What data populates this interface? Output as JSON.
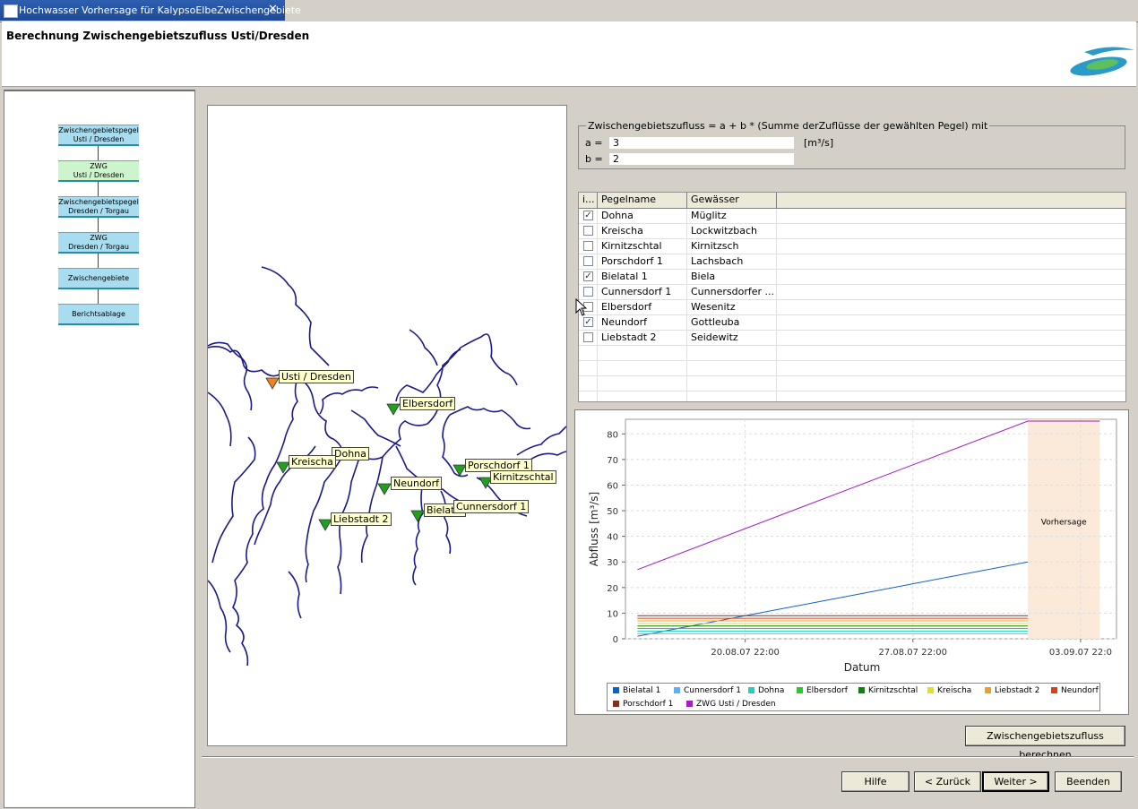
{
  "window": {
    "tab_title": "Hochwasser Vorhersage für KalypsoElbeZwischengebiete",
    "close_glyph": "✕"
  },
  "header": {
    "title": "Berechnung Zwischengebietszufluss Usti/Dresden"
  },
  "workflow": [
    {
      "line1": "Zwischengebietspegel",
      "line2": "Usti / Dresden",
      "state": "normal"
    },
    {
      "line1": "ZWG",
      "line2": "Usti / Dresden",
      "state": "active"
    },
    {
      "line1": "Zwischengebietspegel",
      "line2": "Dresden / Torgau",
      "state": "normal"
    },
    {
      "line1": "ZWG",
      "line2": "Dresden / Torgau",
      "state": "normal"
    },
    {
      "line1": "Zwischengebiete",
      "line2": "",
      "state": "normal"
    },
    {
      "line1": "Berichtsablage",
      "line2": "",
      "state": "normal"
    }
  ],
  "map": {
    "labels": [
      "Usti / Dresden",
      "Elbersdorf",
      "Dohna",
      "Kreischa",
      "Neundorf",
      "Porschdorf 1",
      "Kirnitzschtal",
      "Liebstadt 2",
      "Bielatal",
      "Cunnersdorf 1"
    ],
    "marker_colors": {
      "main": "#f08020",
      "gauge": "#20a020"
    }
  },
  "formula": {
    "legend": "Zwischengebietszufluss = a + b * (Summe derZuflüsse der gewählten Pegel) mit",
    "a_label": "a =",
    "a_value": "3",
    "a_unit": "[m³/s]",
    "b_label": "b =",
    "b_value": "2"
  },
  "table": {
    "headers": [
      "i...",
      "Pegelname",
      "Gewässer"
    ],
    "rows": [
      {
        "checked": true,
        "name": "Dohna",
        "river": "Müglitz"
      },
      {
        "checked": false,
        "name": "Kreischa",
        "river": "Lockwitzbach"
      },
      {
        "checked": false,
        "name": "Kirnitzschtal",
        "river": "Kirnitzsch"
      },
      {
        "checked": false,
        "name": "Porschdorf 1",
        "river": "Lachsbach"
      },
      {
        "checked": true,
        "name": "Bielatal 1",
        "river": "Biela"
      },
      {
        "checked": false,
        "name": "Cunnersdorf 1",
        "river": "Cunnersdorfer ..."
      },
      {
        "checked": false,
        "name": "Elbersdorf",
        "river": "Wesenitz"
      },
      {
        "checked": true,
        "name": "Neundorf",
        "river": "Gottleuba"
      },
      {
        "checked": false,
        "name": "Liebstadt 2",
        "river": "Seidewitz"
      }
    ],
    "empty_rows": 4
  },
  "chart_data": {
    "type": "line",
    "xlabel": "Datum",
    "ylabel": "Abfluss [m³/s]",
    "ylim": [
      0,
      85
    ],
    "yticks": [
      0,
      10,
      20,
      30,
      40,
      50,
      60,
      70,
      80
    ],
    "x_tick_labels": [
      "20.08.07 22:00",
      "27.08.07 22:00",
      "03.09.07 22:0"
    ],
    "x_ticks_days": [
      5,
      12,
      19
    ],
    "x_range_days": [
      0,
      20.5
    ],
    "forecast_label": "Vorhersage",
    "forecast_range_days": [
      16.8,
      19.8
    ],
    "series": [
      {
        "name": "Bielatal 1",
        "color": "#1060c0",
        "x": [
          0.5,
          16.8
        ],
        "y": [
          1,
          30
        ]
      },
      {
        "name": "Cunnersdorf 1",
        "color": "#60b0f0",
        "x": [
          0.5,
          16.8
        ],
        "y": [
          2,
          2
        ]
      },
      {
        "name": "Dohna",
        "color": "#20d0c0",
        "x": [
          0.5,
          16.8
        ],
        "y": [
          3,
          3
        ]
      },
      {
        "name": "Elbersdorf",
        "color": "#20d020",
        "x": [
          0.5,
          16.8
        ],
        "y": [
          4,
          4
        ]
      },
      {
        "name": "Kirnitzschtal",
        "color": "#108010",
        "x": [
          0.5,
          16.8
        ],
        "y": [
          5,
          5
        ]
      },
      {
        "name": "Kreischa",
        "color": "#e0e020",
        "x": [
          0.5,
          16.8
        ],
        "y": [
          6,
          6
        ]
      },
      {
        "name": "Liebstadt 2",
        "color": "#f0a020",
        "x": [
          0.5,
          16.8
        ],
        "y": [
          7,
          7
        ]
      },
      {
        "name": "Neundorf",
        "color": "#e04010",
        "x": [
          0.5,
          16.8
        ],
        "y": [
          8,
          8
        ]
      },
      {
        "name": "Porschdorf 1",
        "color": "#803020",
        "x": [
          0.5,
          16.8
        ],
        "y": [
          9,
          9
        ]
      },
      {
        "name": "ZWG Usti / Dresden",
        "color": "#a020c0",
        "x": [
          0.5,
          16.8,
          19.8
        ],
        "y": [
          27,
          85,
          85
        ]
      }
    ]
  },
  "buttons": {
    "calc": "Zwischengebietszufluss berechnen",
    "help": "Hilfe",
    "back": "< Zurück",
    "next": "Weiter >",
    "end": "Beenden"
  }
}
